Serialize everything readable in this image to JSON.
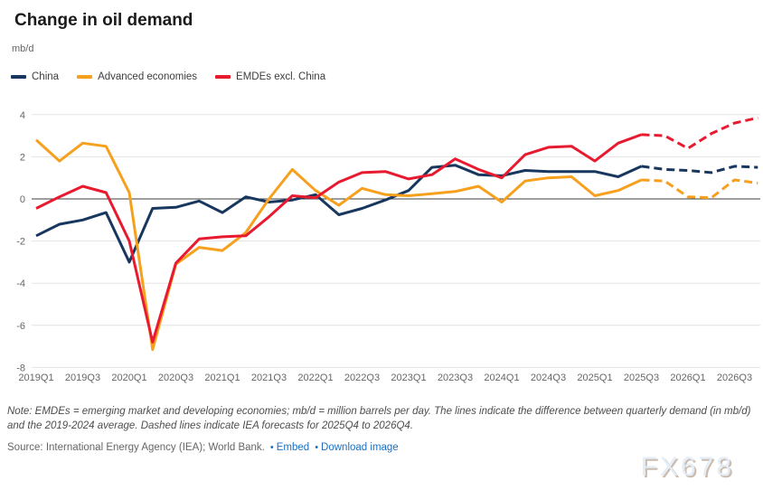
{
  "header": {
    "title": "Change in oil demand",
    "units": "mb/d"
  },
  "legend": [
    {
      "label": "China",
      "color": "#17375e"
    },
    {
      "label": "Advanced economies",
      "color": "#f6a01e"
    },
    {
      "label": "EMDEs excl. China",
      "color": "#e81a30"
    }
  ],
  "chart_data": {
    "type": "line",
    "title": "Change in oil demand",
    "ylabel": "mb/d",
    "xlabel": "",
    "grid": true,
    "legend_position": "top-left",
    "ylim": [
      -8,
      4
    ],
    "yticks": [
      4,
      2,
      0,
      -2,
      -4,
      -6,
      -8
    ],
    "x": [
      "2019Q1",
      "2019Q2",
      "2019Q3",
      "2019Q4",
      "2020Q1",
      "2020Q2",
      "2020Q3",
      "2020Q4",
      "2021Q1",
      "2021Q2",
      "2021Q3",
      "2021Q4",
      "2022Q1",
      "2022Q2",
      "2022Q3",
      "2022Q4",
      "2023Q1",
      "2023Q2",
      "2023Q3",
      "2023Q4",
      "2024Q1",
      "2024Q2",
      "2024Q3",
      "2024Q4",
      "2025Q1",
      "2025Q2",
      "2025Q3",
      "2025Q4",
      "2026Q1",
      "2026Q2",
      "2026Q3",
      "2026Q4"
    ],
    "x_tick_step": 2,
    "forecast_start_label": "2025Q4",
    "series": [
      {
        "name": "China",
        "color": "#17375e",
        "values": [
          -1.75,
          -1.2,
          -1.0,
          -0.65,
          -3.0,
          -0.45,
          -0.4,
          -0.1,
          -0.65,
          0.1,
          -0.15,
          -0.05,
          0.2,
          -0.75,
          -0.45,
          -0.05,
          0.4,
          1.5,
          1.6,
          1.15,
          1.1,
          1.35,
          1.3,
          1.3,
          1.3,
          1.05,
          1.55,
          1.4,
          1.35,
          1.25,
          1.55,
          1.5
        ]
      },
      {
        "name": "Advanced economies",
        "color": "#f6a01e",
        "values": [
          2.8,
          1.8,
          2.65,
          2.5,
          0.3,
          -7.15,
          -3.1,
          -2.3,
          -2.45,
          -1.6,
          0.0,
          1.4,
          0.4,
          -0.3,
          0.5,
          0.2,
          0.15,
          0.25,
          0.35,
          0.6,
          -0.15,
          0.85,
          1.0,
          1.05,
          0.15,
          0.4,
          0.9,
          0.85,
          0.1,
          0.05,
          0.9,
          0.75
        ]
      },
      {
        "name": "EMDEs excl. China",
        "color": "#e81a30",
        "values": [
          -0.45,
          0.1,
          0.6,
          0.3,
          -2.0,
          -6.8,
          -3.05,
          -1.9,
          -1.8,
          -1.75,
          -0.85,
          0.15,
          0.05,
          0.8,
          1.25,
          1.3,
          0.95,
          1.15,
          1.9,
          1.4,
          1.0,
          2.1,
          2.45,
          2.5,
          1.8,
          2.65,
          3.05,
          3.0,
          2.4,
          3.1,
          3.6,
          3.85
        ]
      }
    ]
  },
  "note": {
    "text": "Note: EMDEs = emerging market and developing economies; mb/d = million barrels per day. The lines indicate the difference between quarterly demand (in mb/d) and the 2019-2024 average. Dashed lines indicate IEA forecasts for 2025Q4 to 2026Q4."
  },
  "source": {
    "text": "Source: International Energy Agency (IEA); World Bank.",
    "bullet": "•",
    "links": [
      {
        "label": "Embed"
      },
      {
        "label": "Download image"
      }
    ]
  },
  "watermark": "FX678"
}
